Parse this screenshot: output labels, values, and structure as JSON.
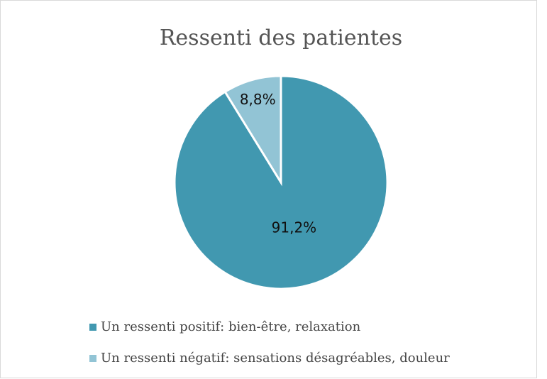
{
  "chart_data": {
    "type": "pie",
    "title": "Ressenti des patientes",
    "categories": [
      "Un ressenti positif: bien-être, relaxation",
      "Un ressenti négatif: sensations désagréables, douleur"
    ],
    "values": [
      91.2,
      8.8
    ],
    "value_labels": [
      "91,2%",
      "8,8%"
    ],
    "colors": [
      "#4198b0",
      "#92c4d5"
    ],
    "legend": "bottom"
  }
}
